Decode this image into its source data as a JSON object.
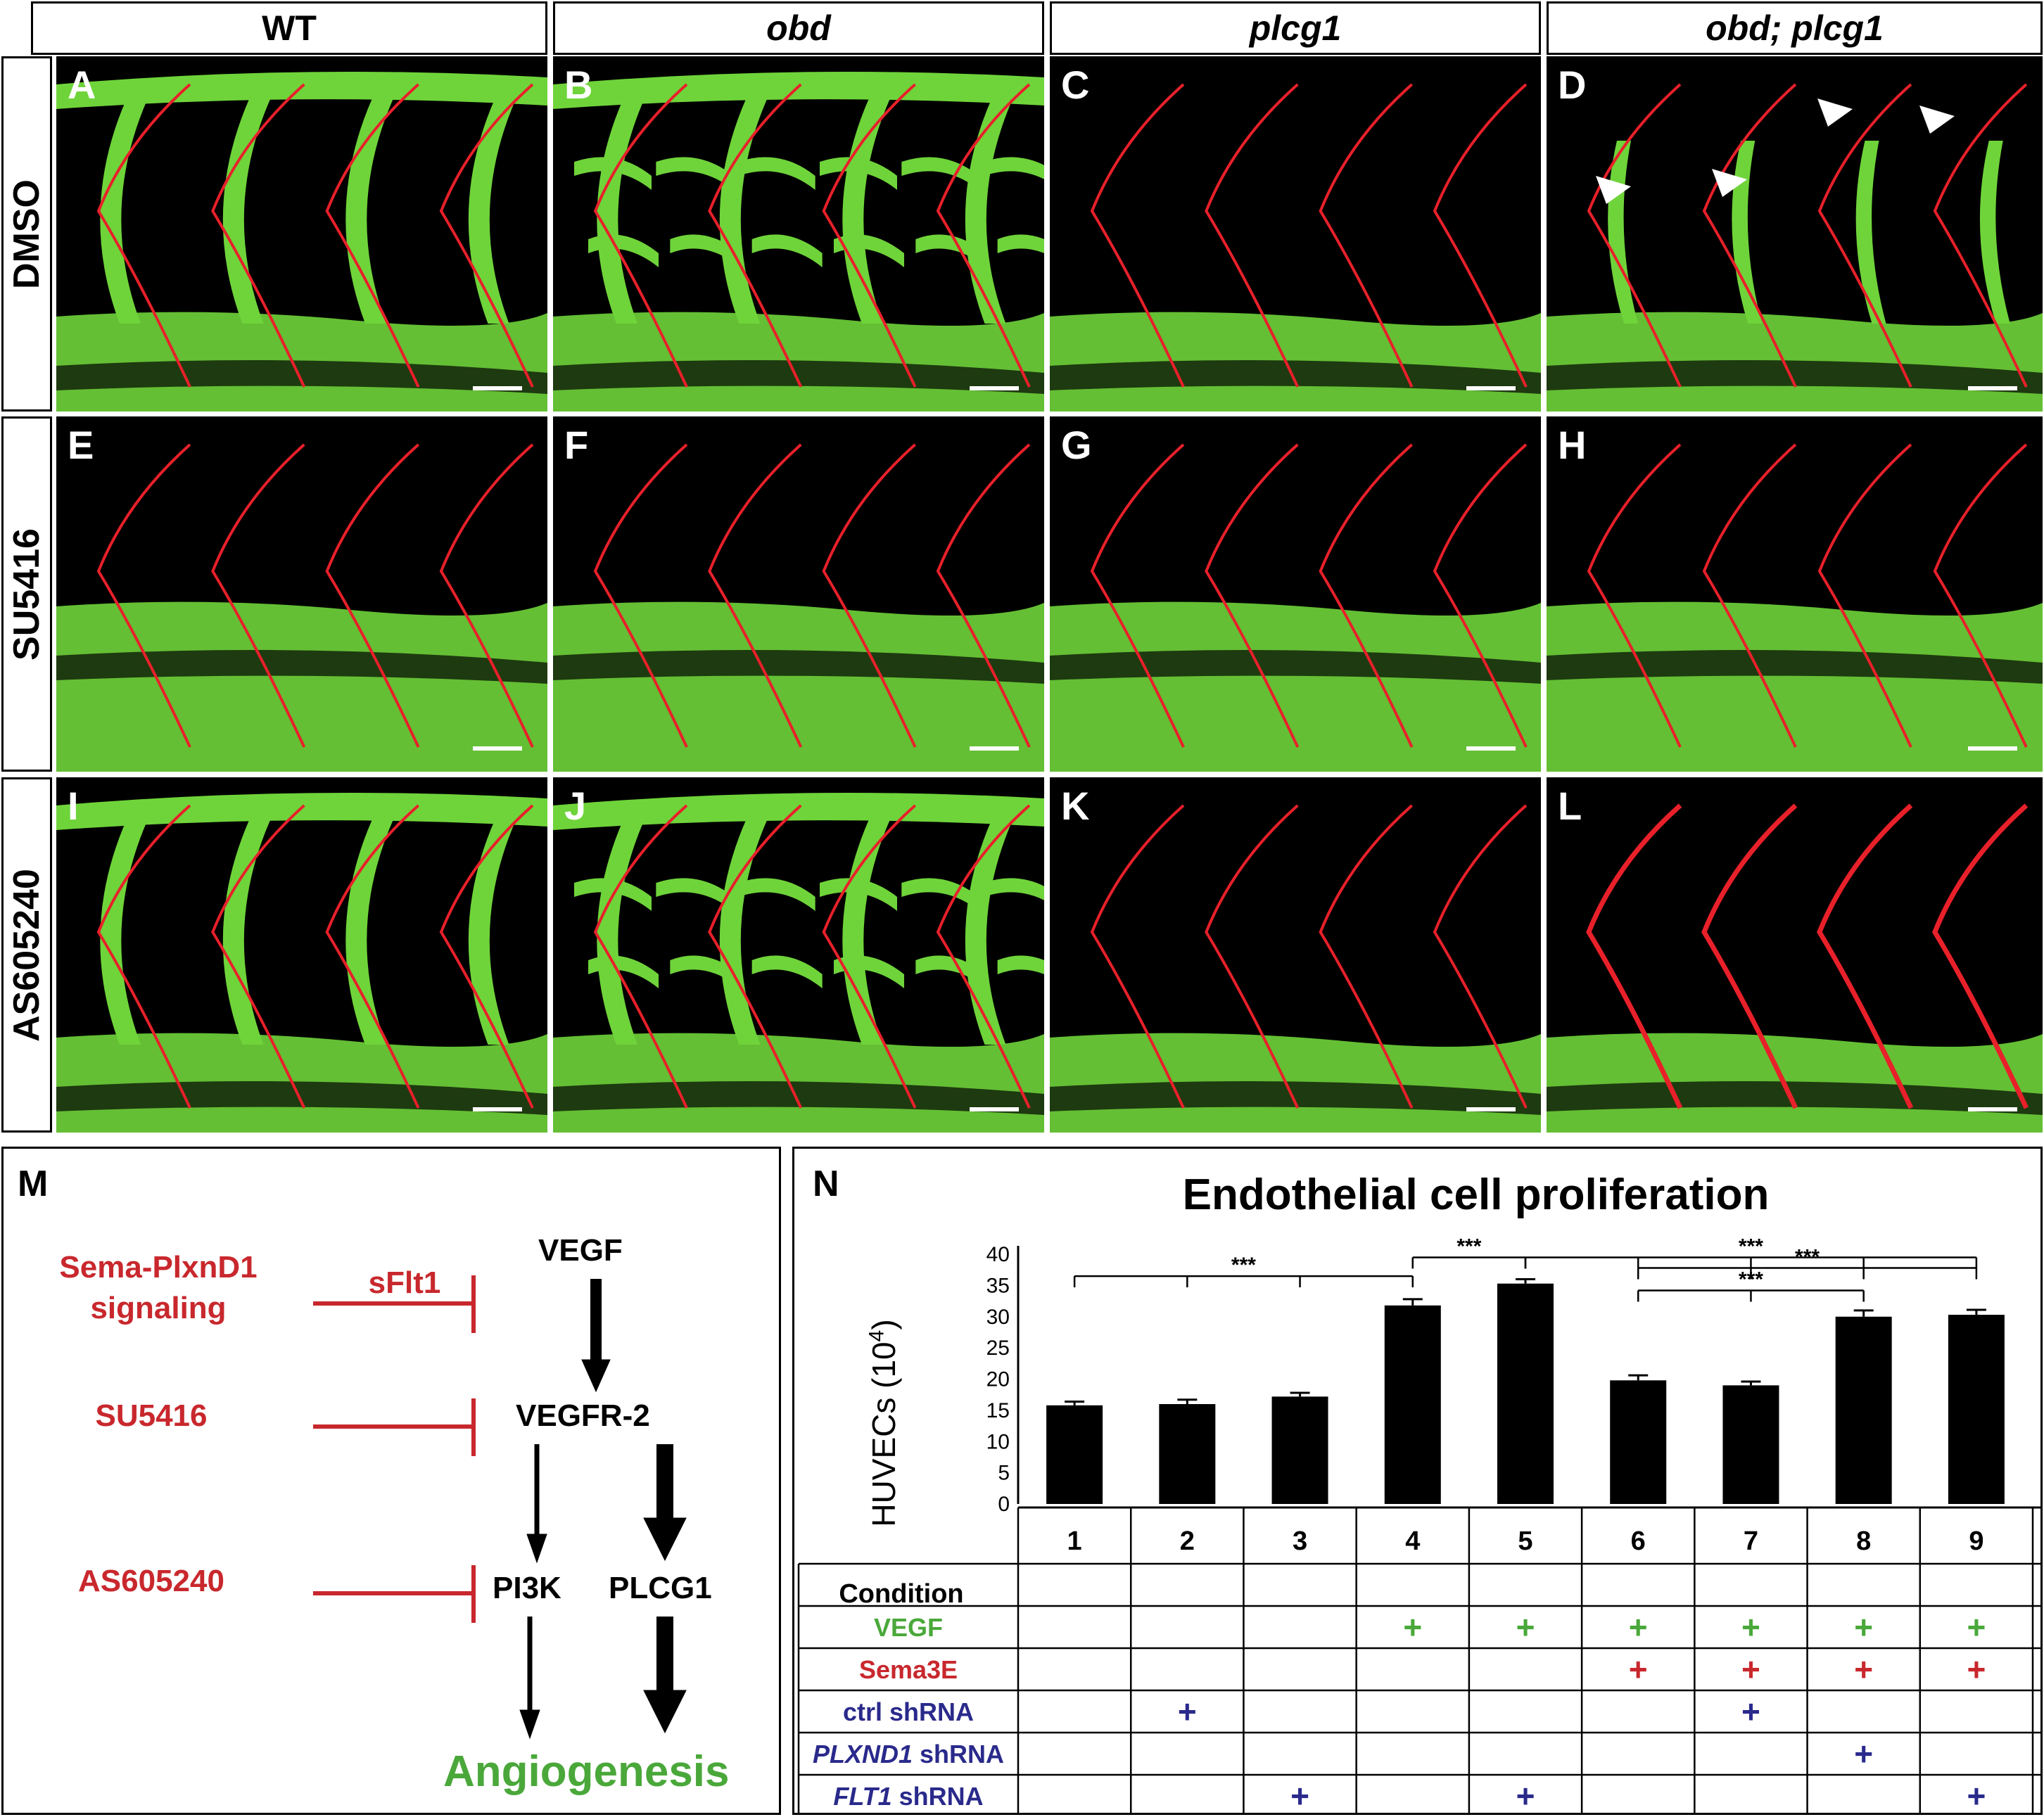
{
  "columns": [
    "WT",
    "obd",
    "plcg1",
    "obd; plcg1"
  ],
  "rows": [
    "DMSO",
    "SU5416",
    "AS605240"
  ],
  "panel_letters": [
    "A",
    "B",
    "C",
    "D",
    "E",
    "F",
    "G",
    "H",
    "I",
    "J",
    "K",
    "L"
  ],
  "panel_M": {
    "letter": "M",
    "inhibitors": [
      "Sema-PlxnD1\nsignaling",
      "SU5416",
      "AS605240"
    ],
    "sflt1": "sFlt1",
    "nodes": {
      "vegf": "VEGF",
      "vegfr2": "VEGFR-2",
      "pi3k": "PI3K",
      "plcg1": "PLCG1",
      "angio": "Angiogenesis"
    },
    "colors": {
      "inhibitor": "#c8282d",
      "angiogenesis": "#4aa83a"
    }
  },
  "panel_N": {
    "letter": "N",
    "title": "Endothelial cell proliferation",
    "ylabel": "HUVECs (10",
    "ylabel_exp": "4",
    "ylabel_close": ")",
    "sig": "***",
    "condition_label": "Condition",
    "plus": "+",
    "row_labels": [
      {
        "pre": "",
        "italic": "",
        "post": "VEGF",
        "color": "#4aa83a"
      },
      {
        "pre": "",
        "italic": "",
        "post": "Sema3E",
        "color": "#c8282d"
      },
      {
        "pre": "ctrl shRNA",
        "italic": "",
        "post": "",
        "color": "#2a2a8c"
      },
      {
        "pre": "",
        "italic": "PLXND1",
        "post": " shRNA",
        "color": "#2a2a8c"
      },
      {
        "pre": "",
        "italic": "FLT1",
        "post": " shRNA",
        "color": "#2a2a8c"
      }
    ],
    "matrix": [
      [
        0,
        0,
        0,
        1,
        1,
        1,
        1,
        1,
        1
      ],
      [
        0,
        0,
        0,
        0,
        0,
        1,
        1,
        1,
        1
      ],
      [
        0,
        1,
        0,
        0,
        0,
        0,
        1,
        0,
        0
      ],
      [
        0,
        0,
        0,
        0,
        0,
        0,
        0,
        1,
        0
      ],
      [
        0,
        0,
        1,
        0,
        1,
        0,
        0,
        0,
        1
      ]
    ]
  },
  "chart_data": {
    "type": "bar",
    "title": "Endothelial cell proliferation",
    "ylabel": "HUVECs (10^4)",
    "categories": [
      "1",
      "2",
      "3",
      "4",
      "5",
      "6",
      "7",
      "8",
      "9"
    ],
    "values": [
      15.8,
      16.0,
      17.2,
      31.8,
      35.3,
      19.8,
      19.0,
      30.0,
      30.3
    ],
    "errors": [
      0.6,
      0.7,
      0.6,
      1.0,
      0.7,
      0.8,
      0.6,
      1.0,
      0.8
    ],
    "ylim": [
      0,
      40
    ],
    "yticks": [
      0,
      5,
      10,
      15,
      20,
      25,
      30,
      35,
      40
    ],
    "significance": [
      {
        "groups": [
          1,
          2,
          3,
          4
        ],
        "label": "***"
      },
      {
        "groups": [
          4,
          5
        ],
        "label": "***"
      },
      {
        "groups": [
          5,
          6,
          7,
          8,
          9
        ],
        "label": "***"
      },
      {
        "groups": [
          6,
          7,
          8,
          9
        ],
        "label": "***"
      },
      {
        "groups": [
          6,
          7,
          8
        ],
        "label": "***"
      }
    ],
    "colors": {
      "bar": "#000000"
    }
  }
}
